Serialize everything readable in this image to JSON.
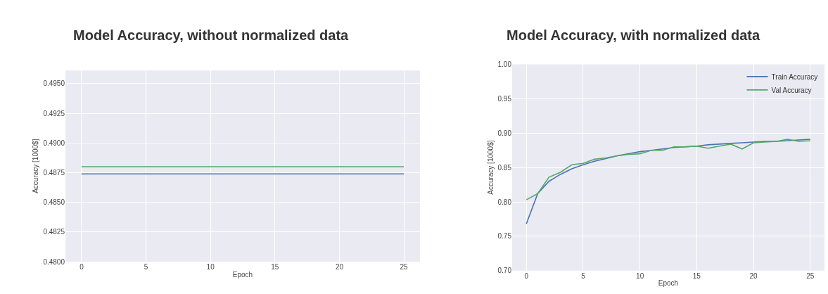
{
  "chart_data": [
    {
      "type": "line",
      "title": "Model Accuracy, without normalized data",
      "xlabel": "Epoch",
      "ylabel": "Accuracy [1000$]",
      "x": [
        0,
        1,
        2,
        3,
        4,
        5,
        6,
        7,
        8,
        9,
        10,
        11,
        12,
        13,
        14,
        15,
        16,
        17,
        18,
        19,
        20,
        21,
        22,
        23,
        24,
        25
      ],
      "series": [
        {
          "color": "#4c72b0",
          "values": [
            0.4874,
            0.4874,
            0.4874,
            0.4874,
            0.4874,
            0.4874,
            0.4874,
            0.4874,
            0.4874,
            0.4874,
            0.4874,
            0.4874,
            0.4874,
            0.4874,
            0.4874,
            0.4874,
            0.4874,
            0.4874,
            0.4874,
            0.4874,
            0.4874,
            0.4874,
            0.4874,
            0.4874,
            0.4874,
            0.4874
          ]
        },
        {
          "color": "#55a868",
          "values": [
            0.488,
            0.488,
            0.488,
            0.488,
            0.488,
            0.488,
            0.488,
            0.488,
            0.488,
            0.488,
            0.488,
            0.488,
            0.488,
            0.488,
            0.488,
            0.488,
            0.488,
            0.488,
            0.488,
            0.488,
            0.488,
            0.488,
            0.488,
            0.488,
            0.488,
            0.488
          ]
        }
      ],
      "xlim": [
        -1.25,
        26.25
      ],
      "xticks": [
        0,
        5,
        10,
        15,
        20,
        25
      ],
      "ylim": [
        0.48,
        0.4961
      ],
      "yticks": [
        {
          "value": 0.48,
          "label": "0.4800"
        },
        0.4825,
        {
          "value": 0.485,
          "label": "0.4850"
        },
        0.4875,
        {
          "value": 0.49,
          "label": "0.4900"
        },
        0.4925,
        {
          "value": 0.495,
          "label": "0.4950"
        }
      ],
      "grid": true,
      "legend": false
    },
    {
      "type": "line",
      "title": "Model Accuracy, with normalized data",
      "xlabel": "Epoch",
      "ylabel": "Accuracy [1000$]",
      "x": [
        0,
        1,
        2,
        3,
        4,
        5,
        6,
        7,
        8,
        9,
        10,
        11,
        12,
        13,
        14,
        15,
        16,
        17,
        18,
        19,
        20,
        21,
        22,
        23,
        24,
        25
      ],
      "series": [
        {
          "name": "Train Accuracy",
          "color": "#4c72b0",
          "values": [
            0.768,
            0.812,
            0.83,
            0.84,
            0.848,
            0.854,
            0.859,
            0.863,
            0.867,
            0.87,
            0.873,
            0.875,
            0.877,
            0.879,
            0.88,
            0.881,
            0.883,
            0.884,
            0.885,
            0.886,
            0.887,
            0.888,
            0.888,
            0.889,
            0.89,
            0.891
          ]
        },
        {
          "name": "Val Accuracy",
          "color": "#55a868",
          "values": [
            0.803,
            0.812,
            0.836,
            0.843,
            0.854,
            0.856,
            0.862,
            0.864,
            0.867,
            0.869,
            0.87,
            0.875,
            0.875,
            0.88,
            0.88,
            0.881,
            0.878,
            0.881,
            0.884,
            0.877,
            0.886,
            0.887,
            0.888,
            0.891,
            0.888,
            0.889
          ]
        }
      ],
      "xlim": [
        -1.25,
        26.25
      ],
      "xticks": [
        0,
        5,
        10,
        15,
        20,
        25
      ],
      "ylim": [
        0.7,
        1.0
      ],
      "yticks": [
        {
          "value": 0.7,
          "label": "0.70"
        },
        0.75,
        {
          "value": 0.8,
          "label": "0.80"
        },
        0.85,
        {
          "value": 0.9,
          "label": "0.90"
        },
        0.95,
        {
          "value": 1.0,
          "label": "1.00"
        }
      ],
      "grid": true,
      "legend": "top right"
    }
  ]
}
